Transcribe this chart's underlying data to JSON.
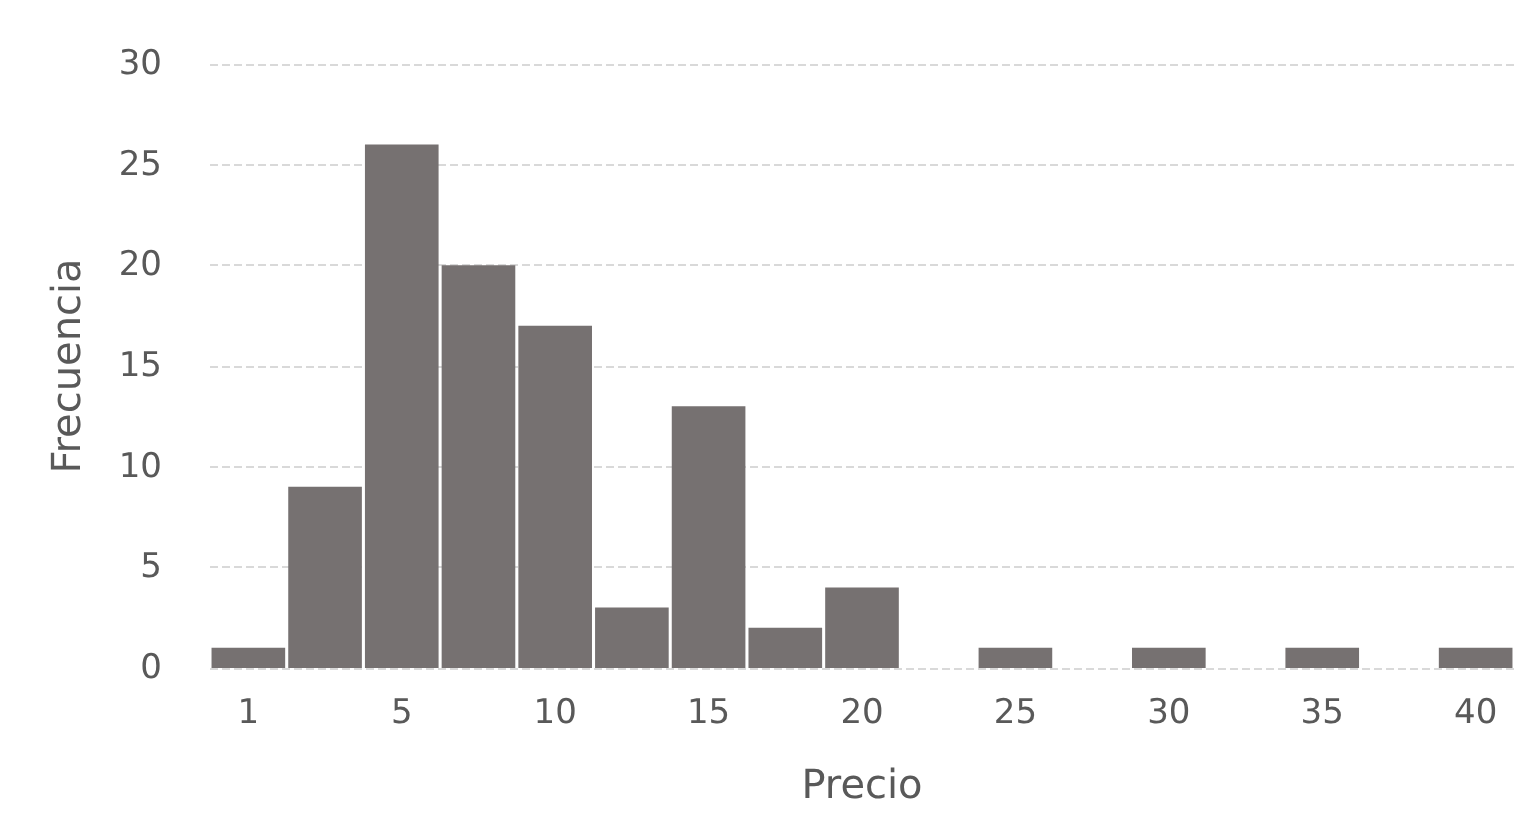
{
  "chart_data": {
    "type": "bar",
    "xlabel": "Precio",
    "ylabel": "Frecuencia",
    "categories": [
      "1",
      null,
      "5",
      null,
      "10",
      null,
      "15",
      null,
      "20",
      null,
      "25",
      null,
      "30",
      null,
      "35",
      null,
      "40"
    ],
    "values": [
      1,
      9,
      26,
      20,
      17,
      3,
      13,
      2,
      4,
      0,
      1,
      0,
      1,
      0,
      1,
      0,
      1
    ],
    "color": "#767171",
    "ylim": [
      0,
      30
    ],
    "yticks": [
      0,
      5,
      10,
      15,
      20,
      25,
      30
    ],
    "grid": "y"
  }
}
